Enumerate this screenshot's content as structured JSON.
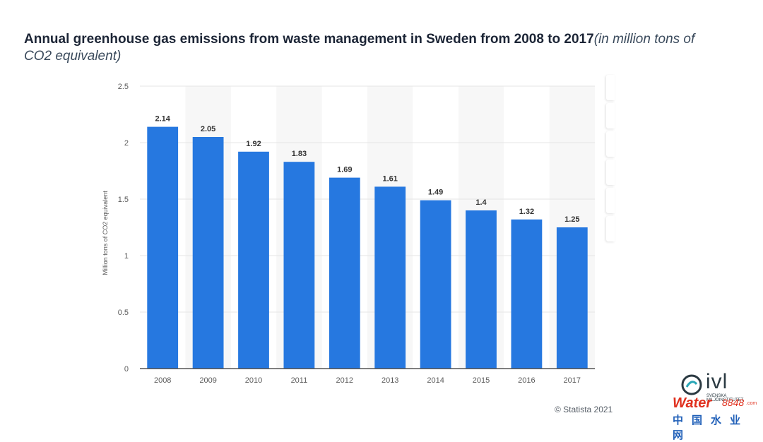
{
  "title": {
    "main": "Annual greenhouse gas emissions from waste management in Sweden from 2008 to 2017",
    "unit": "(in million tons of CO2 equivalent)"
  },
  "credit": "© Statista 2021",
  "logos": {
    "ivl_text": "ivl",
    "ivl_sub_line1": "SVENSKA",
    "ivl_sub_line2": "MILJÖINSTITUTET",
    "water_word": "Water",
    "water_num": "8848",
    "water_com": ".com",
    "water_cn": "中国水业网"
  },
  "colors": {
    "bar": "#2678e0",
    "grid": "#e6e6e6",
    "band": "#f7f7f7",
    "axis_text": "#5a5a5a",
    "label_text": "#333333"
  },
  "chart_data": {
    "type": "bar",
    "categories": [
      "2008",
      "2009",
      "2010",
      "2011",
      "2012",
      "2013",
      "2014",
      "2015",
      "2016",
      "2017"
    ],
    "values": [
      2.14,
      2.05,
      1.92,
      1.83,
      1.69,
      1.61,
      1.49,
      1.4,
      1.32,
      1.25
    ],
    "value_labels": [
      "2.14",
      "2.05",
      "1.92",
      "1.83",
      "1.69",
      "1.61",
      "1.49",
      "1.4",
      "1.32",
      "1.25"
    ],
    "yticks": [
      "0",
      "0.5",
      "1",
      "1.5",
      "2",
      "2.5"
    ],
    "ylim": [
      0,
      2.5
    ],
    "xlabel": "",
    "ylabel": "Million tons of CO2 equivalent",
    "grid": true
  }
}
